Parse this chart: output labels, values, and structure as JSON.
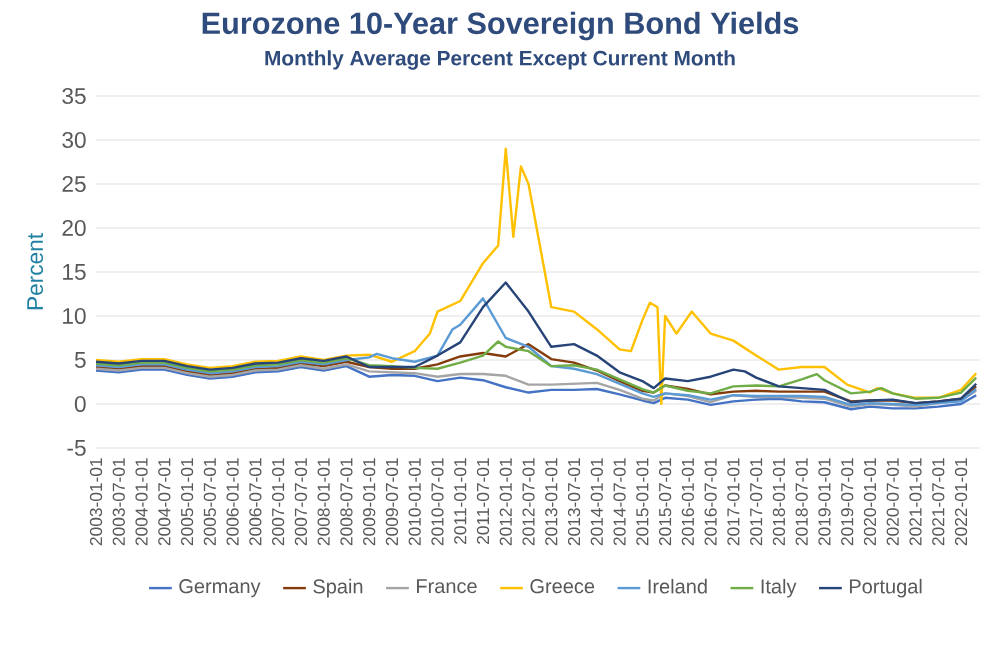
{
  "chart_data": {
    "type": "line",
    "title": "Eurozone 10-Year Sovereign Bond Yields",
    "subtitle": "Monthly Average Percent Except Current Month",
    "ylabel": "Percent",
    "xlim": [
      "2003-01",
      "2022-06"
    ],
    "ylim": [
      -5,
      35
    ],
    "yticks": [
      -5,
      0,
      5,
      10,
      15,
      20,
      25,
      30,
      35
    ],
    "xticks": [
      "2003-01-01",
      "2003-07-01",
      "2004-01-01",
      "2004-07-01",
      "2005-01-01",
      "2005-07-01",
      "2006-01-01",
      "2006-07-01",
      "2007-01-01",
      "2007-07-01",
      "2008-01-01",
      "2008-07-01",
      "2009-01-01",
      "2009-07-01",
      "2010-01-01",
      "2010-07-01",
      "2011-01-01",
      "2011-07-01",
      "2012-01-01",
      "2012-07-01",
      "2013-01-01",
      "2013-07-01",
      "2014-01-01",
      "2014-07-01",
      "2015-01-01",
      "2015-07-01",
      "2016-01-01",
      "2016-07-01",
      "2017-01-01",
      "2017-07-01",
      "2018-01-01",
      "2018-07-01",
      "2019-01-01",
      "2019-07-01",
      "2020-01-01",
      "2020-07-01",
      "2021-01-01",
      "2021-07-01",
      "2022-01-01"
    ],
    "grid": "y",
    "legend": "bottom",
    "series": [
      {
        "name": "Germany",
        "color": "#4472c4",
        "x": [
          "2003-01",
          "2003-07",
          "2004-01",
          "2004-07",
          "2005-01",
          "2005-07",
          "2006-01",
          "2006-07",
          "2007-01",
          "2007-07",
          "2008-01",
          "2008-07",
          "2009-01",
          "2009-07",
          "2010-01",
          "2010-07",
          "2011-01",
          "2011-07",
          "2012-01",
          "2012-07",
          "2013-01",
          "2013-07",
          "2014-01",
          "2014-07",
          "2015-01",
          "2015-04",
          "2015-07",
          "2016-01",
          "2016-07",
          "2017-01",
          "2017-07",
          "2018-01",
          "2018-07",
          "2019-01",
          "2019-08",
          "2020-01",
          "2020-07",
          "2021-01",
          "2021-07",
          "2022-01",
          "2022-05"
        ],
        "values": [
          3.8,
          3.6,
          3.9,
          3.9,
          3.3,
          2.9,
          3.1,
          3.6,
          3.7,
          4.2,
          3.8,
          4.3,
          3.1,
          3.3,
          3.2,
          2.6,
          3.0,
          2.7,
          1.9,
          1.3,
          1.6,
          1.6,
          1.7,
          1.1,
          0.4,
          0.1,
          0.7,
          0.5,
          -0.1,
          0.3,
          0.5,
          0.6,
          0.3,
          0.2,
          -0.6,
          -0.3,
          -0.5,
          -0.5,
          -0.3,
          0.0,
          1.0
        ]
      },
      {
        "name": "Spain",
        "color": "#843c0c",
        "x": [
          "2003-01",
          "2003-07",
          "2004-01",
          "2004-07",
          "2005-01",
          "2005-07",
          "2006-01",
          "2006-07",
          "2007-01",
          "2007-07",
          "2008-01",
          "2008-07",
          "2009-01",
          "2009-07",
          "2010-01",
          "2010-07",
          "2011-01",
          "2011-07",
          "2012-01",
          "2012-07",
          "2013-01",
          "2013-07",
          "2014-01",
          "2014-07",
          "2015-01",
          "2015-04",
          "2015-07",
          "2016-01",
          "2016-07",
          "2017-01",
          "2017-07",
          "2018-01",
          "2018-07",
          "2019-01",
          "2019-08",
          "2020-01",
          "2020-07",
          "2021-01",
          "2021-07",
          "2022-01",
          "2022-05"
        ],
        "values": [
          4.2,
          4.0,
          4.3,
          4.3,
          3.7,
          3.3,
          3.5,
          4.0,
          4.1,
          4.6,
          4.3,
          4.8,
          4.2,
          4.0,
          4.0,
          4.5,
          5.4,
          5.8,
          5.4,
          6.8,
          5.1,
          4.7,
          3.8,
          2.6,
          1.5,
          1.3,
          2.1,
          1.7,
          1.1,
          1.4,
          1.5,
          1.4,
          1.4,
          1.4,
          0.3,
          0.4,
          0.4,
          0.1,
          0.3,
          0.6,
          2.0
        ]
      },
      {
        "name": "France",
        "color": "#a5a5a5",
        "x": [
          "2003-01",
          "2003-07",
          "2004-01",
          "2004-07",
          "2005-01",
          "2005-07",
          "2006-01",
          "2006-07",
          "2007-01",
          "2007-07",
          "2008-01",
          "2008-07",
          "2009-01",
          "2009-07",
          "2010-01",
          "2010-07",
          "2011-01",
          "2011-07",
          "2012-01",
          "2012-07",
          "2013-01",
          "2013-07",
          "2014-01",
          "2014-07",
          "2015-01",
          "2015-04",
          "2015-07",
          "2016-01",
          "2016-07",
          "2017-01",
          "2017-07",
          "2018-01",
          "2018-07",
          "2019-01",
          "2019-08",
          "2020-01",
          "2020-07",
          "2021-01",
          "2021-07",
          "2022-01",
          "2022-05"
        ],
        "values": [
          4.0,
          3.8,
          4.1,
          4.1,
          3.5,
          3.1,
          3.3,
          3.8,
          3.9,
          4.4,
          4.0,
          4.5,
          3.7,
          3.6,
          3.5,
          3.1,
          3.4,
          3.4,
          3.2,
          2.2,
          2.2,
          2.3,
          2.4,
          1.6,
          0.6,
          0.4,
          1.2,
          0.9,
          0.2,
          1.0,
          0.8,
          0.8,
          0.7,
          0.6,
          -0.3,
          0.0,
          -0.1,
          -0.3,
          0.1,
          0.4,
          1.5
        ]
      },
      {
        "name": "Greece",
        "color": "#ffc000",
        "x": [
          "2003-01",
          "2003-07",
          "2004-01",
          "2004-07",
          "2005-01",
          "2005-07",
          "2006-01",
          "2006-07",
          "2007-01",
          "2007-07",
          "2008-01",
          "2008-07",
          "2009-01",
          "2009-07",
          "2010-01",
          "2010-05",
          "2010-07",
          "2011-01",
          "2011-07",
          "2011-11",
          "2012-01",
          "2012-03",
          "2012-05",
          "2012-07",
          "2012-10",
          "2013-01",
          "2013-07",
          "2014-01",
          "2014-07",
          "2014-10",
          "2015-01",
          "2015-03",
          "2015-05",
          "2015-06",
          "2015-07",
          "2015-10",
          "2016-02",
          "2016-07",
          "2017-01",
          "2017-07",
          "2018-01",
          "2018-07",
          "2019-01",
          "2019-07",
          "2020-01",
          "2020-03",
          "2020-07",
          "2021-01",
          "2021-07",
          "2022-01",
          "2022-05"
        ],
        "values": [
          5.0,
          4.8,
          5.1,
          5.1,
          4.5,
          4.1,
          4.3,
          4.8,
          4.9,
          5.4,
          5.0,
          5.5,
          5.6,
          4.8,
          6.0,
          8.0,
          10.5,
          11.7,
          16.0,
          18.0,
          29.0,
          19.0,
          27.0,
          25.0,
          18.0,
          11.0,
          10.5,
          8.5,
          6.2,
          6.0,
          9.5,
          11.5,
          11.0,
          0.0,
          10.0,
          8.0,
          10.5,
          8.0,
          7.2,
          5.5,
          3.9,
          4.2,
          4.2,
          2.2,
          1.3,
          1.8,
          1.2,
          0.7,
          0.7,
          1.6,
          3.5
        ]
      },
      {
        "name": "Ireland",
        "color": "#5b9bd5",
        "x": [
          "2003-01",
          "2003-07",
          "2004-01",
          "2004-07",
          "2005-01",
          "2005-07",
          "2006-01",
          "2006-07",
          "2007-01",
          "2007-07",
          "2008-01",
          "2008-07",
          "2009-01",
          "2009-03",
          "2009-07",
          "2010-01",
          "2010-07",
          "2010-11",
          "2011-01",
          "2011-07",
          "2012-01",
          "2012-07",
          "2013-01",
          "2013-07",
          "2014-01",
          "2014-07",
          "2015-01",
          "2015-04",
          "2015-07",
          "2016-01",
          "2016-07",
          "2017-01",
          "2017-07",
          "2018-01",
          "2018-07",
          "2019-01",
          "2019-08",
          "2020-01",
          "2020-07",
          "2021-01",
          "2021-07",
          "2022-01",
          "2022-05"
        ],
        "values": [
          4.4,
          4.2,
          4.5,
          4.5,
          3.9,
          3.5,
          3.7,
          4.2,
          4.3,
          4.8,
          4.5,
          5.0,
          5.3,
          5.7,
          5.2,
          4.8,
          5.5,
          8.5,
          9.0,
          12.0,
          7.5,
          6.5,
          4.3,
          4.0,
          3.4,
          2.3,
          1.2,
          0.8,
          1.2,
          1.0,
          0.5,
          1.0,
          0.9,
          0.9,
          0.9,
          0.8,
          -0.1,
          0.1,
          0.0,
          -0.1,
          0.1,
          0.3,
          1.7
        ]
      },
      {
        "name": "Italy",
        "color": "#70ad47",
        "x": [
          "2003-01",
          "2003-07",
          "2004-01",
          "2004-07",
          "2005-01",
          "2005-07",
          "2006-01",
          "2006-07",
          "2007-01",
          "2007-07",
          "2008-01",
          "2008-07",
          "2009-01",
          "2009-07",
          "2010-01",
          "2010-07",
          "2011-01",
          "2011-07",
          "2011-11",
          "2012-01",
          "2012-07",
          "2013-01",
          "2013-07",
          "2014-01",
          "2014-07",
          "2015-01",
          "2015-04",
          "2015-07",
          "2016-01",
          "2016-07",
          "2017-01",
          "2017-07",
          "2018-01",
          "2018-07",
          "2018-11",
          "2019-01",
          "2019-08",
          "2020-01",
          "2020-04",
          "2020-07",
          "2021-01",
          "2021-07",
          "2022-01",
          "2022-05"
        ],
        "values": [
          4.6,
          4.4,
          4.7,
          4.7,
          4.1,
          3.7,
          3.9,
          4.4,
          4.5,
          5.0,
          4.7,
          5.2,
          4.4,
          4.3,
          4.1,
          4.0,
          4.7,
          5.5,
          7.1,
          6.5,
          6.0,
          4.3,
          4.4,
          3.9,
          2.8,
          1.7,
          1.3,
          2.1,
          1.5,
          1.2,
          2.0,
          2.1,
          2.0,
          2.8,
          3.4,
          2.7,
          1.2,
          1.4,
          1.8,
          1.2,
          0.6,
          0.7,
          1.3,
          3.0
        ]
      },
      {
        "name": "Portugal",
        "color": "#264478",
        "x": [
          "2003-01",
          "2003-07",
          "2004-01",
          "2004-07",
          "2005-01",
          "2005-07",
          "2006-01",
          "2006-07",
          "2007-01",
          "2007-07",
          "2008-01",
          "2008-07",
          "2009-01",
          "2009-07",
          "2010-01",
          "2010-07",
          "2011-01",
          "2011-07",
          "2012-01",
          "2012-07",
          "2013-01",
          "2013-07",
          "2014-01",
          "2014-07",
          "2015-01",
          "2015-04",
          "2015-07",
          "2016-01",
          "2016-07",
          "2017-01",
          "2017-04",
          "2017-07",
          "2018-01",
          "2018-07",
          "2019-01",
          "2019-08",
          "2020-01",
          "2020-07",
          "2021-01",
          "2021-07",
          "2022-01",
          "2022-05"
        ],
        "values": [
          4.8,
          4.6,
          4.9,
          4.9,
          4.3,
          3.9,
          4.1,
          4.6,
          4.7,
          5.2,
          4.9,
          5.4,
          4.2,
          4.2,
          4.2,
          5.5,
          7.0,
          11.0,
          13.8,
          10.5,
          6.5,
          6.8,
          5.5,
          3.6,
          2.6,
          1.8,
          2.9,
          2.6,
          3.1,
          3.9,
          3.7,
          3.0,
          2.0,
          1.8,
          1.6,
          0.2,
          0.4,
          0.5,
          0.1,
          0.3,
          0.6,
          2.3
        ]
      }
    ]
  }
}
